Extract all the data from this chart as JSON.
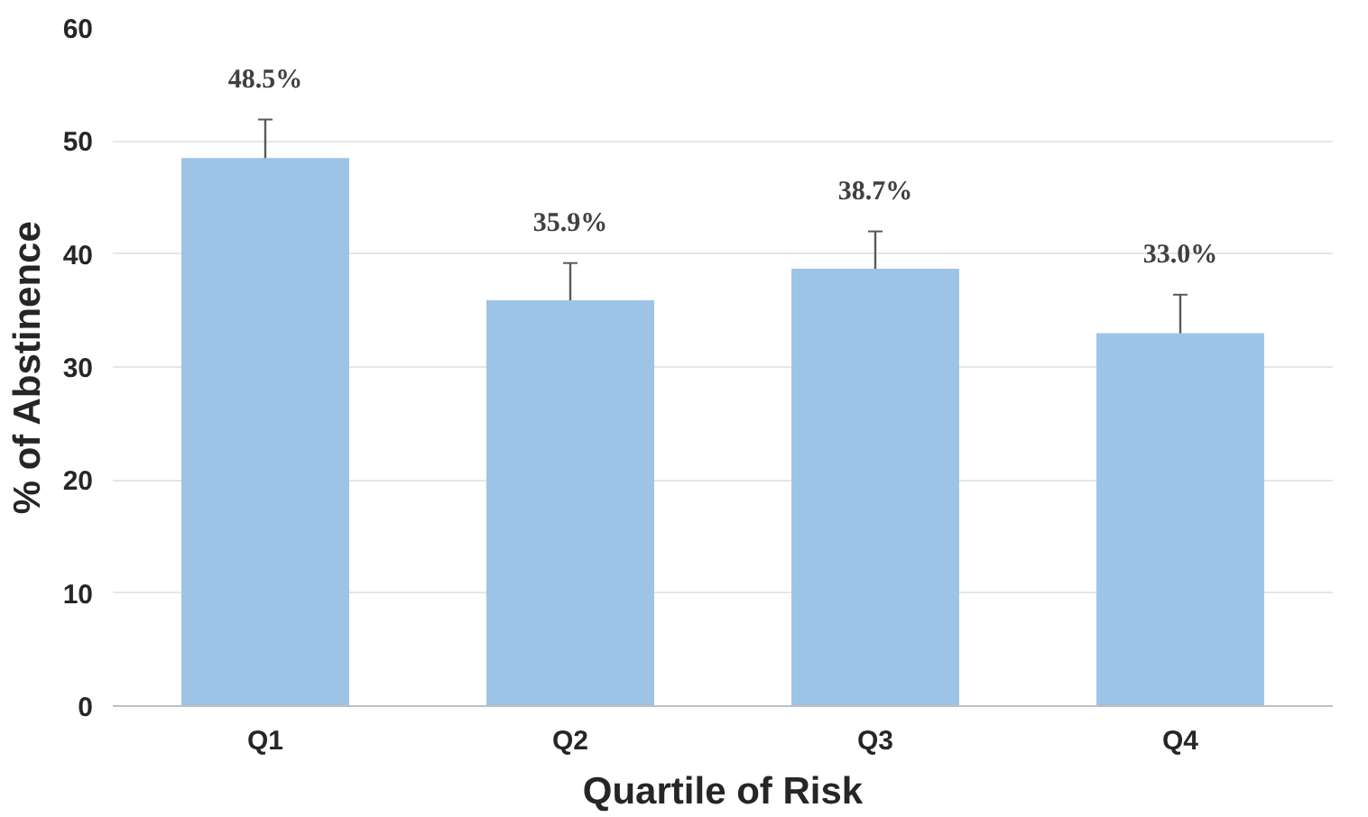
{
  "chart_data": {
    "type": "bar",
    "xlabel": "Quartile of Risk",
    "ylabel": "% of Abstinence",
    "categories": [
      "Q1",
      "Q2",
      "Q3",
      "Q4"
    ],
    "values": [
      48.5,
      35.9,
      38.7,
      33.0
    ],
    "errors": [
      3.4,
      3.3,
      3.3,
      3.4
    ],
    "value_labels": [
      "48.5%",
      "35.9%",
      "38.7%",
      "33.0%"
    ],
    "color": "#9dc3e6",
    "ylim": [
      0,
      60
    ],
    "yticks": [
      0,
      10,
      20,
      30,
      40,
      50,
      60
    ],
    "grid": "y"
  }
}
